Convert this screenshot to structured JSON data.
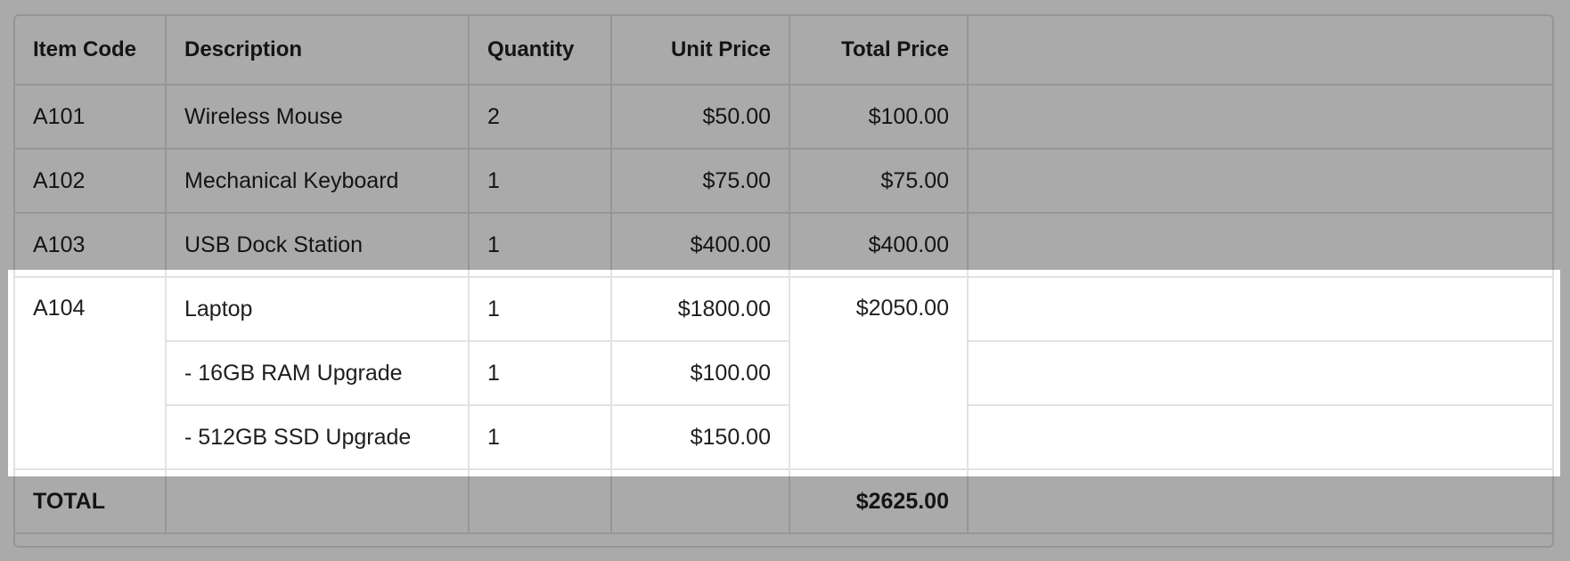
{
  "table": {
    "headers": [
      "Item Code",
      "Description",
      "Quantity",
      "Unit Price",
      "Total Price",
      ""
    ],
    "rows": [
      {
        "code": "A101",
        "description": "Wireless Mouse",
        "quantity": "2",
        "unit_price": "$50.00",
        "total_price": "$100.00"
      },
      {
        "code": "A102",
        "description": "Mechanical Keyboard",
        "quantity": "1",
        "unit_price": "$75.00",
        "total_price": "$75.00"
      },
      {
        "code": "A103",
        "description": "USB Dock Station",
        "quantity": "1",
        "unit_price": "$400.00",
        "total_price": "$400.00"
      }
    ],
    "group": {
      "code": "A104",
      "total_price": "$2050.00",
      "lines": [
        {
          "description": "Laptop",
          "quantity": "1",
          "unit_price": "$1800.00"
        },
        {
          "description": "- 16GB RAM Upgrade",
          "quantity": "1",
          "unit_price": "$100.00"
        },
        {
          "description": "- 512GB SSD Upgrade",
          "quantity": "1",
          "unit_price": "$150.00"
        }
      ]
    },
    "total": {
      "label": "TOTAL",
      "value": "$2625.00"
    }
  },
  "overlay": {
    "dim_color": "#aaaaaa",
    "highlight": "A104"
  }
}
